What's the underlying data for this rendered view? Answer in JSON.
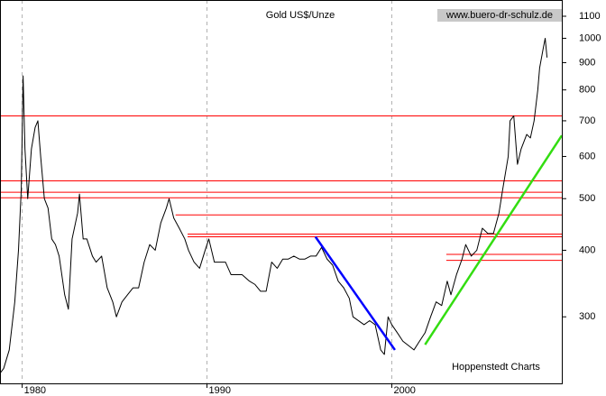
{
  "chart_data": {
    "type": "line",
    "title": "Gold US$/Unze",
    "annotations": [
      "www.buero-dr-schulz.de",
      "Hoppenstedt Charts"
    ],
    "log_y": true,
    "grid": true,
    "color": "#000000",
    "xlim": [
      1978.8,
      2009.2
    ],
    "xticks": [
      1980,
      1990,
      2000
    ],
    "ylim": [
      225,
      1180
    ],
    "yticks": [
      300,
      400,
      500,
      600,
      700,
      800,
      900,
      1000,
      1100
    ],
    "x": [
      1978.8,
      1979.0,
      1979.3,
      1979.6,
      1979.8,
      1979.95,
      1980.05,
      1980.15,
      1980.3,
      1980.5,
      1980.7,
      1980.85,
      1981.0,
      1981.2,
      1981.4,
      1981.6,
      1981.8,
      1982.0,
      1982.3,
      1982.5,
      1982.7,
      1983.0,
      1983.1,
      1983.3,
      1983.5,
      1983.8,
      1984.0,
      1984.3,
      1984.6,
      1984.9,
      1985.1,
      1985.4,
      1985.7,
      1986.0,
      1986.3,
      1986.6,
      1986.9,
      1987.2,
      1987.5,
      1987.8,
      1987.95,
      1988.2,
      1988.5,
      1988.8,
      1989.0,
      1989.3,
      1989.6,
      1989.9,
      1990.1,
      1990.4,
      1990.7,
      1991.0,
      1991.3,
      1991.6,
      1991.9,
      1992.3,
      1992.6,
      1992.9,
      1993.2,
      1993.5,
      1993.8,
      1994.1,
      1994.4,
      1994.7,
      1995.0,
      1995.3,
      1995.6,
      1995.9,
      1996.2,
      1996.5,
      1996.8,
      1997.1,
      1997.4,
      1997.7,
      1997.9,
      1998.2,
      1998.5,
      1998.8,
      1999.1,
      1999.4,
      1999.6,
      1999.8,
      2000.0,
      2000.3,
      2000.6,
      2000.9,
      2001.2,
      2001.5,
      2001.8,
      2002.1,
      2002.4,
      2002.7,
      2003.0,
      2003.2,
      2003.5,
      2003.8,
      2004.0,
      2004.3,
      2004.6,
      2004.9,
      2005.2,
      2005.5,
      2005.8,
      2006.0,
      2006.3,
      2006.4,
      2006.6,
      2006.8,
      2007.0,
      2007.3,
      2007.5,
      2007.7,
      2007.9,
      2008.0,
      2008.2,
      2008.3,
      2008.4
    ],
    "values": [
      235,
      240,
      260,
      320,
      400,
      520,
      850,
      620,
      500,
      620,
      680,
      700,
      600,
      500,
      480,
      420,
      410,
      390,
      330,
      310,
      420,
      470,
      510,
      420,
      420,
      390,
      380,
      390,
      340,
      320,
      300,
      320,
      330,
      340,
      340,
      380,
      410,
      400,
      450,
      480,
      500,
      460,
      440,
      420,
      400,
      380,
      370,
      400,
      420,
      380,
      380,
      380,
      360,
      360,
      360,
      350,
      345,
      335,
      335,
      380,
      370,
      385,
      385,
      390,
      385,
      385,
      390,
      390,
      405,
      385,
      375,
      350,
      340,
      325,
      300,
      295,
      290,
      295,
      290,
      260,
      255,
      300,
      290,
      280,
      270,
      265,
      260,
      270,
      280,
      300,
      320,
      315,
      350,
      330,
      360,
      385,
      410,
      390,
      400,
      440,
      430,
      430,
      470,
      520,
      600,
      700,
      715,
      580,
      620,
      660,
      650,
      700,
      800,
      880,
      960,
      1000,
      920
    ],
    "reference_lines": {
      "color": "#ff0000",
      "lines": [
        {
          "value": 715,
          "from": 1978.8
        },
        {
          "value": 540,
          "from": 1978.8
        },
        {
          "value": 514,
          "from": 1978.8
        },
        {
          "value": 502,
          "from": 1978.8
        },
        {
          "value": 466,
          "from": 1988.3
        },
        {
          "value": 429,
          "from": 1988.95
        },
        {
          "value": 424,
          "from": 1988.95
        },
        {
          "value": 393,
          "from": 2002.95
        },
        {
          "value": 383,
          "from": 2002.95
        }
      ]
    },
    "trend_lines": [
      {
        "color": "#0000ff",
        "x": [
          1995.87,
          2000.17
        ],
        "values": [
          424,
          260
        ]
      },
      {
        "color": "#33dd11",
        "x": [
          2001.8,
          2009.2
        ],
        "values": [
          266,
          657
        ]
      }
    ]
  }
}
